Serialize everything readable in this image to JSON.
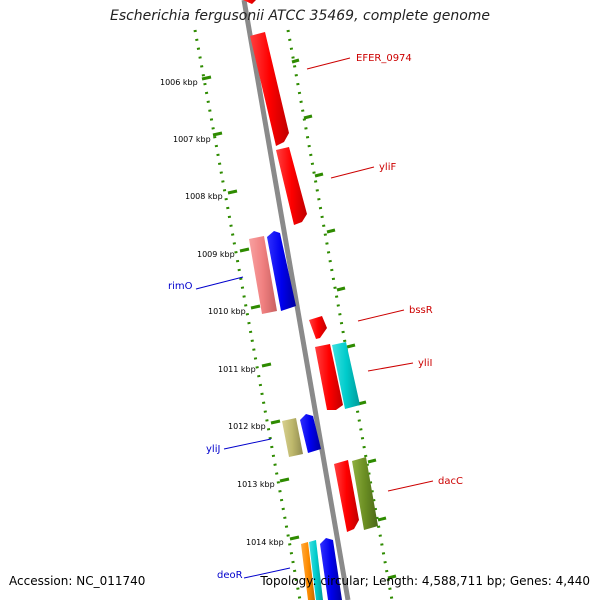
{
  "title": "Escherichia fergusonii ATCC 35469, complete genome",
  "accession": "Accession: NC_011740",
  "topology": "Topology: circular; Length: 4,588,711 bp; Genes: 4,440",
  "ticks": [
    {
      "label": "1006 kbp"
    },
    {
      "label": "1007 kbp"
    },
    {
      "label": "1008 kbp"
    },
    {
      "label": "1009 kbp"
    },
    {
      "label": "1010 kbp"
    },
    {
      "label": "1011 kbp"
    },
    {
      "label": "1012 kbp"
    },
    {
      "label": "1013 kbp"
    },
    {
      "label": "1014 kbp"
    }
  ],
  "gene_labels": [
    {
      "name": "EFER_0974",
      "strand": "forward",
      "color": "#cc0000"
    },
    {
      "name": "yliF",
      "strand": "forward",
      "color": "#cc0000"
    },
    {
      "name": "rimO",
      "strand": "reverse",
      "color": "#0000cc"
    },
    {
      "name": "bssR",
      "strand": "forward",
      "color": "#cc0000"
    },
    {
      "name": "yliI",
      "strand": "forward",
      "color": "#cc0000"
    },
    {
      "name": "yliJ",
      "strand": "reverse",
      "color": "#0000cc"
    },
    {
      "name": "dacC",
      "strand": "forward",
      "color": "#cc0000"
    },
    {
      "name": "deoR",
      "strand": "reverse",
      "color": "#0000cc"
    }
  ],
  "colors": {
    "backbone": "#808080",
    "tick_dots": "#2e8b00",
    "red_gene": "#ff0000",
    "blue_gene": "#0000ee",
    "pink_gene": "#f08080",
    "cyan_gene": "#00cccc",
    "khaki_gene": "#bdb76b",
    "olive_gene": "#6b8e23",
    "orange_gene": "#ff8c00"
  }
}
